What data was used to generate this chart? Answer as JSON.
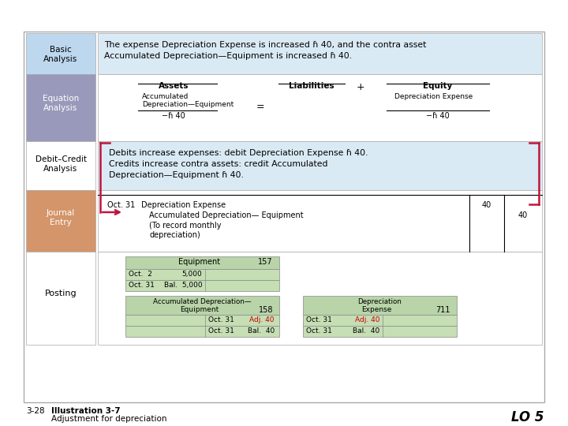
{
  "title": "Illustration 3-7",
  "subtitle": "Adjustment for depreciation",
  "page_ref": "3-28",
  "lo_ref": "LO 5",
  "bg_color": "#FFFFFF",
  "label_bg_basic": "#BDD7EE",
  "label_bg_equation": "#9999BB",
  "label_bg_journal": "#D4956A",
  "content_bg_blue_light": "#DAEAF5",
  "content_bg_green_light": "#C5DEB4",
  "content_bg_green_header": "#B8D4A8",
  "basic_text_line1": "The expense Depreciation Expense is increased ɦ 40, and the contra asset",
  "basic_text_line2": "Accumulated Depreciation—Equipment is increased ɦ 40.",
  "debit_text_line1": "Debits increase expenses: debit Depreciation Expense ɦ 40.",
  "debit_text_line2": "Credits increase contra assets: credit Accumulated",
  "debit_text_line3": "Depreciation—Equipment ɦ 40.",
  "arrow_color": "#C0143C",
  "red_text_color": "#CC0000"
}
